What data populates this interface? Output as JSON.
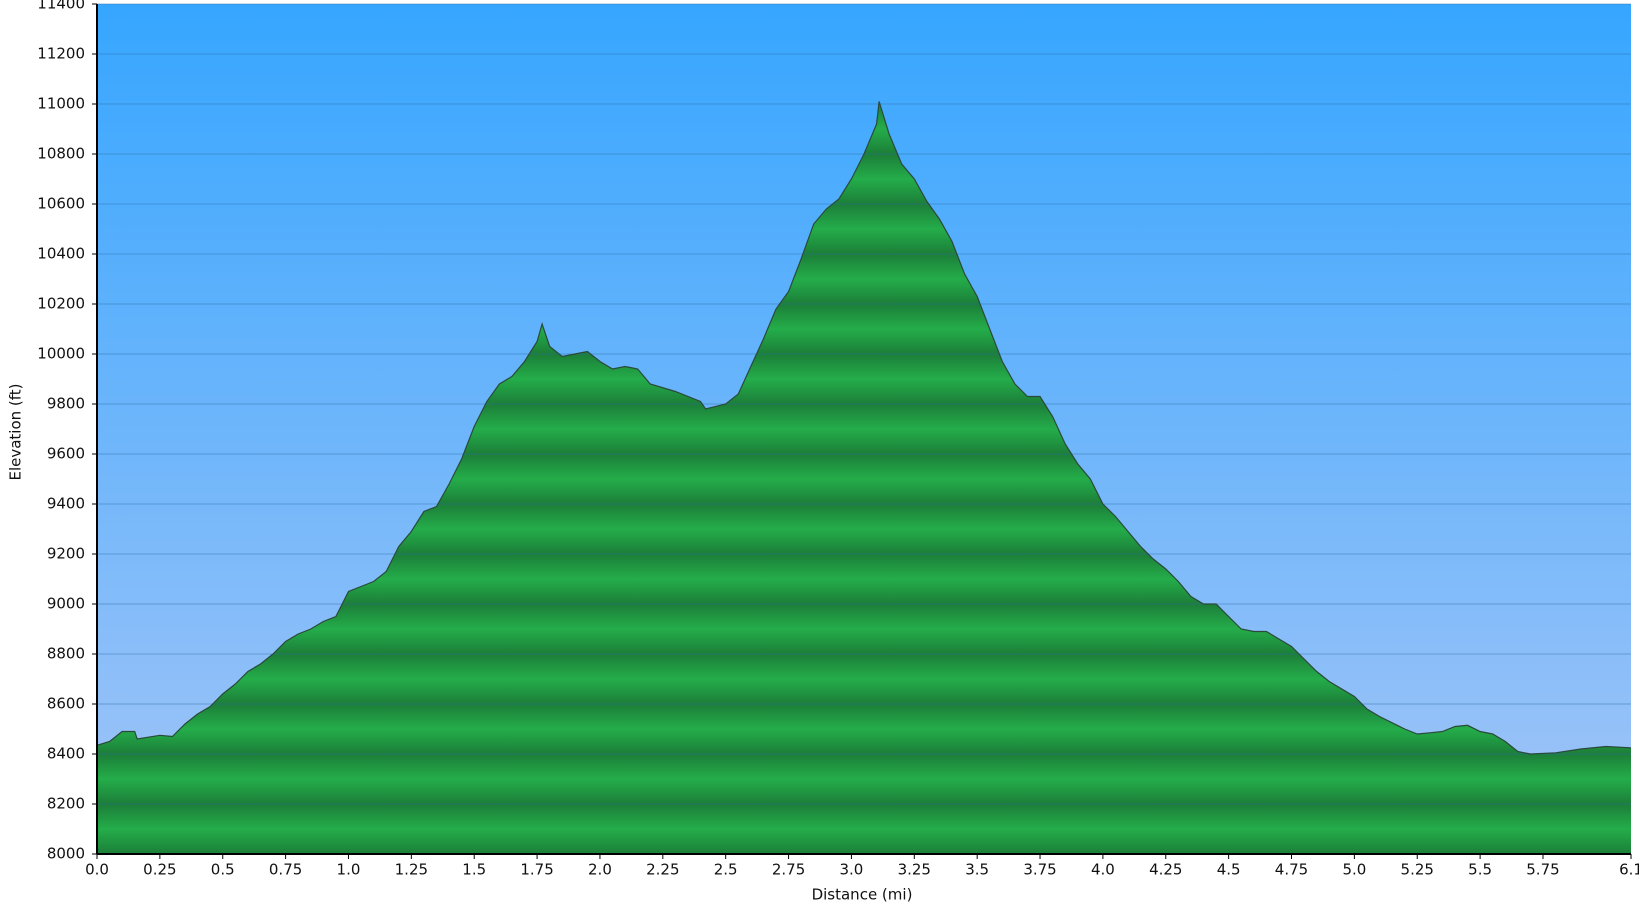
{
  "chart_data": {
    "type": "area",
    "xlabel": "Distance   (mi)",
    "ylabel": "Elevation (ft)",
    "color": "#22a846",
    "x": [
      0,
      0.05,
      0.1,
      0.15,
      0.16,
      0.25,
      0.3,
      0.35,
      0.4,
      0.45,
      0.5,
      0.55,
      0.6,
      0.65,
      0.7,
      0.75,
      0.8,
      0.85,
      0.9,
      0.95,
      1.0,
      1.05,
      1.1,
      1.15,
      1.2,
      1.25,
      1.3,
      1.35,
      1.4,
      1.45,
      1.5,
      1.55,
      1.6,
      1.65,
      1.7,
      1.75,
      1.77,
      1.8,
      1.85,
      1.9,
      1.95,
      2.0,
      2.05,
      2.1,
      2.15,
      2.2,
      2.3,
      2.4,
      2.42,
      2.5,
      2.55,
      2.6,
      2.65,
      2.7,
      2.75,
      2.8,
      2.85,
      2.9,
      2.95,
      3.0,
      3.05,
      3.1,
      3.11,
      3.15,
      3.2,
      3.25,
      3.3,
      3.35,
      3.4,
      3.45,
      3.5,
      3.55,
      3.6,
      3.65,
      3.7,
      3.75,
      3.8,
      3.85,
      3.9,
      3.95,
      4.0,
      4.05,
      4.1,
      4.15,
      4.2,
      4.25,
      4.3,
      4.35,
      4.4,
      4.45,
      4.5,
      4.55,
      4.6,
      4.65,
      4.7,
      4.75,
      4.8,
      4.85,
      4.9,
      5.0,
      5.05,
      5.1,
      5.2,
      5.25,
      5.3,
      5.35,
      5.4,
      5.45,
      5.5,
      5.55,
      5.6,
      5.65,
      5.7,
      5.8,
      5.9,
      6.0,
      6.1
    ],
    "values": [
      8435,
      8450,
      8490,
      8490,
      8460,
      8475,
      8470,
      8520,
      8560,
      8590,
      8640,
      8680,
      8730,
      8760,
      8800,
      8850,
      8880,
      8900,
      8930,
      8950,
      9050,
      9070,
      9090,
      9130,
      9230,
      9290,
      9370,
      9390,
      9480,
      9580,
      9710,
      9810,
      9880,
      9910,
      9970,
      10050,
      10120,
      10030,
      9990,
      10000,
      10010,
      9970,
      9940,
      9950,
      9940,
      9880,
      9850,
      9810,
      9780,
      9800,
      9840,
      9950,
      10060,
      10180,
      10250,
      10380,
      10520,
      10580,
      10620,
      10700,
      10800,
      10920,
      11010,
      10880,
      10760,
      10700,
      10610,
      10540,
      10450,
      10320,
      10230,
      10100,
      9970,
      9880,
      9830,
      9830,
      9750,
      9640,
      9560,
      9500,
      9400,
      9350,
      9290,
      9230,
      9180,
      9140,
      9090,
      9030,
      9000,
      9000,
      8950,
      8900,
      8890,
      8890,
      8860,
      8830,
      8780,
      8730,
      8690,
      8630,
      8580,
      8550,
      8500,
      8480,
      8485,
      8490,
      8510,
      8515,
      8490,
      8480,
      8450,
      8410,
      8400,
      8405,
      8420,
      8430,
      8425
    ],
    "xlim": [
      0,
      6.1
    ],
    "ylim": [
      8000,
      11400
    ],
    "xticks": [
      {
        "value": 0,
        "label": "0.0"
      },
      0.25,
      0.5,
      0.75,
      {
        "value": 1,
        "label": "1.0"
      },
      1.25,
      1.5,
      1.75,
      {
        "value": 2,
        "label": "2.0"
      },
      2.25,
      2.5,
      2.75,
      {
        "value": 3,
        "label": "3.0"
      },
      3.25,
      3.5,
      3.75,
      {
        "value": 4,
        "label": "4.0"
      },
      4.25,
      4.5,
      4.75,
      {
        "value": 5,
        "label": "5.0"
      },
      5.25,
      5.5,
      5.75,
      6.1
    ],
    "yticks": [
      8000,
      8200,
      8400,
      8600,
      8800,
      9000,
      9200,
      9400,
      9600,
      9800,
      10000,
      10200,
      10400,
      10600,
      10800,
      11000,
      11200,
      11400
    ],
    "grid": true
  }
}
